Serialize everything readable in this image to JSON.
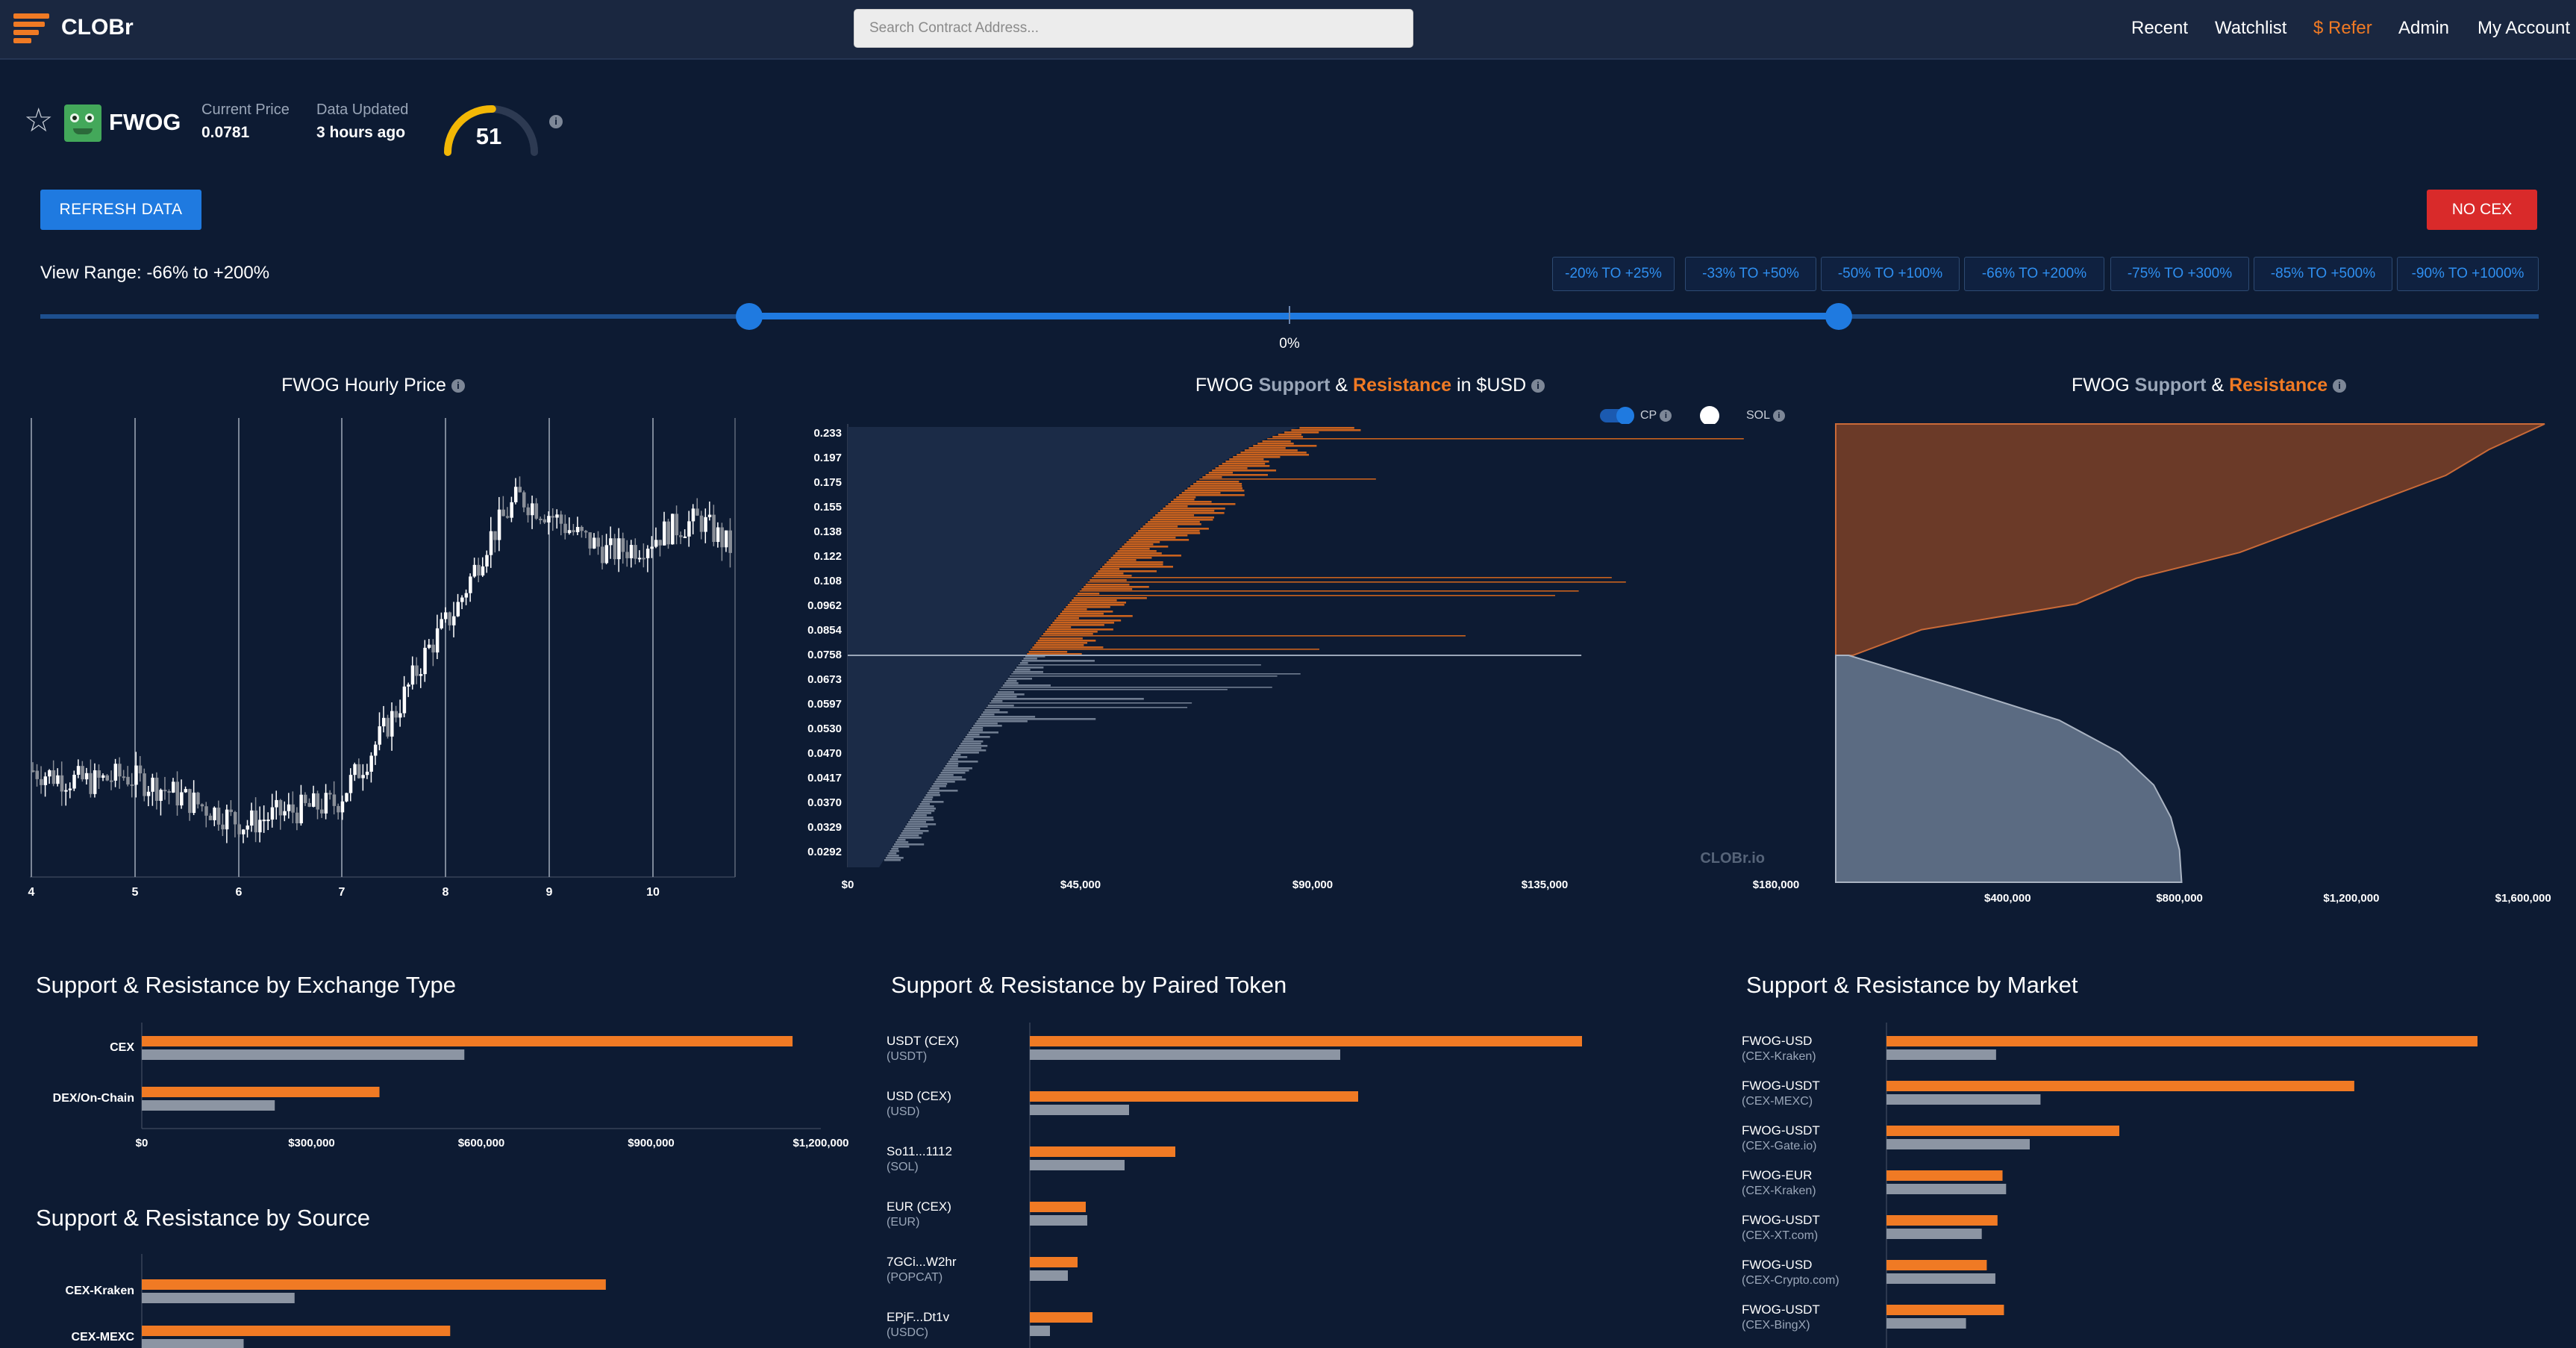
{
  "nav": {
    "brand": "CLOBr",
    "search_placeholder": "Search Contract Address...",
    "links": [
      "Recent",
      "Watchlist",
      "$ Refer",
      "Admin",
      "My Account"
    ]
  },
  "token": {
    "symbol": "FWOG",
    "current_price_label": "Current Price",
    "current_price": "0.0781",
    "data_updated_label": "Data Updated",
    "data_updated": "3 hours ago",
    "score": "51",
    "score_fraction": 0.51
  },
  "controls": {
    "refresh_label": "REFRESH DATA",
    "no_cex_label": "NO CEX",
    "view_range_label": "View Range: -66% to +200%",
    "range_buttons": [
      "-20% TO +25%",
      "-33% TO +50%",
      "-50% TO +100%",
      "-66% TO +200%",
      "-75% TO +300%",
      "-85% TO +500%",
      "-90% TO +1000%"
    ],
    "slider_center_label": "0%"
  },
  "charts": {
    "hourly_title": "FWOG Hourly Price",
    "sr_usd": {
      "title_prefix": "FWOG",
      "title_support": "Support",
      "title_amp": "&",
      "title_resist": "Resistance",
      "title_suffix": "in $USD",
      "toggle_cp": "CP",
      "toggle_sol": "SOL",
      "watermark": "CLOBr.io"
    },
    "sr_cum": {
      "title_prefix": "FWOG",
      "title_support": "Support",
      "title_amp": "&",
      "title_resist": "Resistance"
    }
  },
  "sections": {
    "exchange_type": "Support & Resistance by Exchange Type",
    "paired_token": "Support & Resistance by Paired Token",
    "market": "Support & Resistance by Market",
    "source": "Support & Resistance by Source"
  },
  "chart_data": [
    {
      "id": "hourly-price",
      "type": "candlestick",
      "title": "FWOG Hourly Price",
      "x_ticks": [
        "4",
        "5",
        "6",
        "7",
        "8",
        "9",
        "10"
      ],
      "trend": [
        0.0645,
        0.064,
        0.0638,
        0.0642,
        0.0636,
        0.0628,
        0.062,
        0.0612,
        0.0618,
        0.0622,
        0.0625,
        0.0652,
        0.0682,
        0.0718,
        0.0745,
        0.0785,
        0.0812,
        0.0802,
        0.0788,
        0.0778,
        0.0782,
        0.0792,
        0.0798,
        0.0781
      ],
      "ylim": [
        0.058,
        0.086
      ]
    },
    {
      "id": "sr-usd",
      "type": "bar",
      "orientation": "horizontal",
      "title": "FWOG Support & Resistance in $USD",
      "y_ticks": [
        "0.233",
        "0.197",
        "0.175",
        "0.155",
        "0.138",
        "0.122",
        "0.108",
        "0.0962",
        "0.0854",
        "0.0758",
        "0.0673",
        "0.0597",
        "0.0530",
        "0.0470",
        "0.0417",
        "0.0370",
        "0.0329",
        "0.0292"
      ],
      "x_ticks": [
        "$0",
        "$45,000",
        "$90,000",
        "$135,000",
        "$180,000"
      ],
      "xlim": [
        0,
        180000
      ],
      "current_price": 0.0781,
      "series": [
        {
          "name": "Resistance",
          "color": "#f07a24"
        },
        {
          "name": "Support",
          "color": "#8c9aae"
        }
      ]
    },
    {
      "id": "sr-cumulative",
      "type": "area",
      "title": "FWOG Support & Resistance",
      "x_ticks": [
        "$400,000",
        "$800,000",
        "$1,200,000",
        "$1,600,000"
      ],
      "xlim": [
        0,
        1650000
      ],
      "resistance_steps": [
        1650000,
        1520000,
        1420000,
        1260000,
        1100000,
        940000,
        700000,
        560000,
        200000,
        40000
      ],
      "support_steps": [
        30000,
        280000,
        520000,
        660000,
        740000,
        780000,
        800000,
        805000
      ]
    },
    {
      "id": "by-exchange-type",
      "type": "bar",
      "orientation": "horizontal",
      "categories": [
        "CEX",
        "DEX/On-Chain"
      ],
      "series": [
        {
          "name": "Resistance",
          "values": [
            1150000,
            420000
          ]
        },
        {
          "name": "Support",
          "values": [
            570000,
            235000
          ]
        }
      ],
      "x_ticks": [
        "$0",
        "$300,000",
        "$600,000",
        "$900,000",
        "$1,200,000"
      ],
      "xlim": [
        0,
        1200000
      ]
    },
    {
      "id": "by-source",
      "type": "bar",
      "orientation": "horizontal",
      "categories": [
        "CEX-Kraken",
        "CEX-MEXC"
      ],
      "series": [
        {
          "name": "Resistance",
          "values": [
            820000,
            545000
          ]
        },
        {
          "name": "Support",
          "values": [
            270000,
            180000
          ]
        }
      ],
      "xlim": [
        0,
        1200000
      ]
    },
    {
      "id": "by-paired-token",
      "type": "bar",
      "orientation": "horizontal",
      "categories": [
        {
          "label": "USDT (CEX)",
          "sub": "(USDT)"
        },
        {
          "label": "USD (CEX)",
          "sub": "(USD)"
        },
        {
          "label": "So11...1112",
          "sub": "(SOL)"
        },
        {
          "label": "EUR (CEX)",
          "sub": "(EUR)"
        },
        {
          "label": "7GCi...W2hr",
          "sub": "(POPCAT)"
        },
        {
          "label": "EPjF...Dt1v",
          "sub": "(USDC)"
        }
      ],
      "series": [
        {
          "name": "Resistance",
          "values": [
            740,
            440,
            195,
            75,
            64,
            84
          ]
        },
        {
          "name": "Support",
          "values": [
            416,
            133,
            127,
            77,
            51,
            27
          ]
        }
      ],
      "xlim": [
        0,
        1000
      ]
    },
    {
      "id": "by-market",
      "type": "bar",
      "orientation": "horizontal",
      "categories": [
        {
          "label": "FWOG-USD",
          "sub": "(CEX-Kraken)"
        },
        {
          "label": "FWOG-USDT",
          "sub": "(CEX-MEXC)"
        },
        {
          "label": "FWOG-USDT",
          "sub": "(CEX-Gate.io)"
        },
        {
          "label": "FWOG-EUR",
          "sub": "(CEX-Kraken)"
        },
        {
          "label": "FWOG-USDT",
          "sub": "(CEX-XT.com)"
        },
        {
          "label": "FWOG-USD",
          "sub": "(CEX-Crypto.com)"
        },
        {
          "label": "FWOG-USDT",
          "sub": "(CEX-BingX)"
        }
      ],
      "series": [
        {
          "name": "Resistance",
          "values": [
            825,
            653,
            325,
            162,
            155,
            140,
            164
          ]
        },
        {
          "name": "Support",
          "values": [
            153,
            215,
            200,
            167,
            133,
            152,
            111
          ]
        }
      ],
      "xlim": [
        0,
        1000
      ]
    }
  ]
}
